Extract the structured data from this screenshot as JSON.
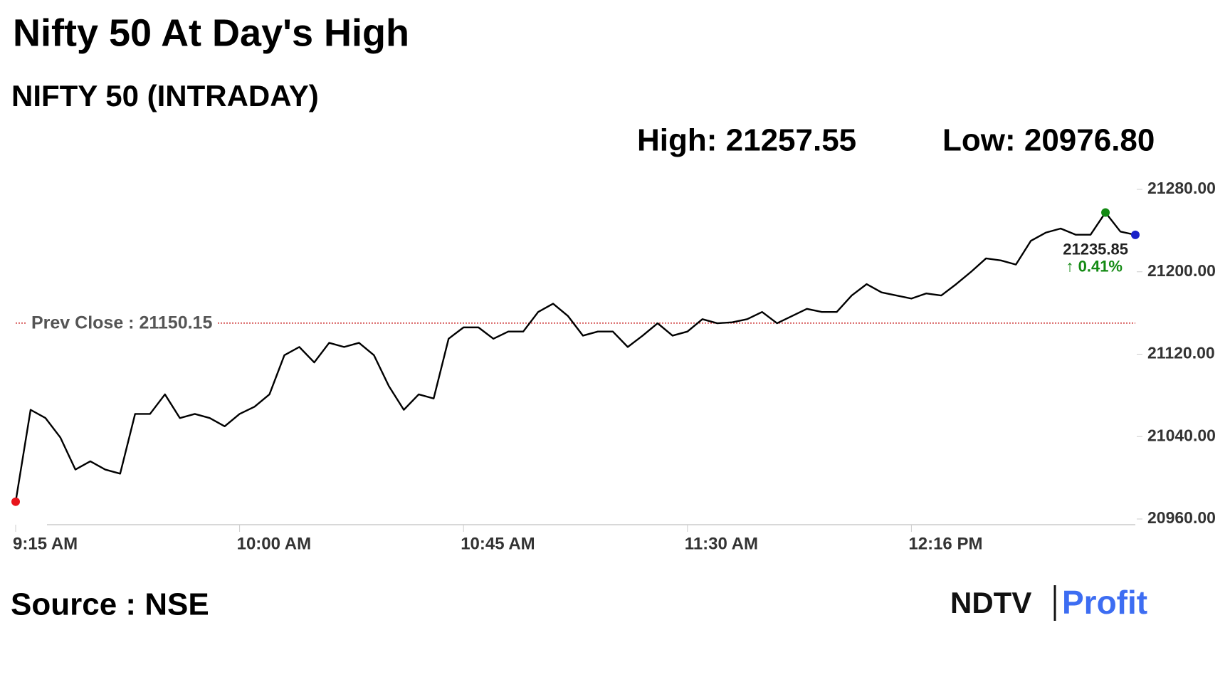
{
  "chart_data": {
    "type": "line",
    "title": "Nifty 50 At Day's High",
    "subtitle": "NIFTY 50 (INTRADAY)",
    "high_text": "High: 21257.55",
    "low_text": "Low: 20976.80",
    "source": "Source : NSE",
    "logo": {
      "left": "NDTV",
      "right": "Profit"
    },
    "categories": [
      "9:15 AM",
      null,
      null,
      null,
      null,
      null,
      null,
      null,
      null,
      null,
      null,
      null,
      null,
      null,
      null,
      "10:00 AM",
      null,
      null,
      null,
      null,
      null,
      null,
      null,
      null,
      null,
      null,
      null,
      null,
      null,
      null,
      "10:45 AM",
      null,
      null,
      null,
      null,
      null,
      null,
      null,
      null,
      null,
      null,
      null,
      null,
      null,
      null,
      "11:30 AM",
      null,
      null,
      null,
      null,
      null,
      null,
      null,
      null,
      null,
      null,
      null,
      null,
      null,
      null,
      "12:16 PM",
      null,
      null,
      null,
      null,
      null,
      null,
      null,
      null,
      null,
      null,
      null,
      null,
      null,
      null,
      null
    ],
    "series": [
      {
        "name": "NIFTY 50",
        "color": "#000000",
        "values": [
          20976.8,
          21066,
          21058,
          21039,
          21008,
          21016,
          21008,
          21004,
          21062,
          21062,
          21081,
          21058,
          21062,
          21058,
          21050,
          21062,
          21069,
          21081,
          21119,
          21127,
          21112,
          21131,
          21127,
          21131,
          21119,
          21089,
          21066,
          21081,
          21077,
          21135,
          21146,
          21146,
          21135,
          21142,
          21142,
          21161,
          21169,
          21157,
          21138,
          21142,
          21142,
          21127,
          21138,
          21150,
          21138,
          21142,
          21154,
          21150,
          21151,
          21154,
          21161,
          21150,
          21157,
          21164,
          21161,
          21161,
          21177,
          21188,
          21180,
          21177,
          21174,
          21179,
          21177,
          21188,
          21200,
          21213,
          21211,
          21207,
          21230,
          21238,
          21242,
          21236,
          21236,
          21257.55,
          21239,
          21235.85
        ]
      }
    ],
    "markers": [
      {
        "index": 0,
        "color": "#e8141b"
      },
      {
        "index": 73,
        "color": "#138a13"
      },
      {
        "index": 75,
        "color": "#1a22c8"
      }
    ],
    "last_label": "21235.85",
    "change": {
      "value": 0.41,
      "label": "↑ 0.41%",
      "color": "#138a13"
    },
    "reference_line": {
      "value": 21150.15,
      "label": "Prev Close : 21150.15",
      "color": "#c00000"
    },
    "ylim": [
      20960,
      21280
    ],
    "yticks": [
      {
        "value": 20960,
        "label": "20960.00"
      },
      {
        "value": 21040,
        "label": "21040.00"
      },
      {
        "value": 21120,
        "label": "21120.00"
      },
      {
        "value": 21200,
        "label": "21200.00"
      },
      {
        "value": 21280,
        "label": "21280.00"
      }
    ],
    "grid": false
  }
}
